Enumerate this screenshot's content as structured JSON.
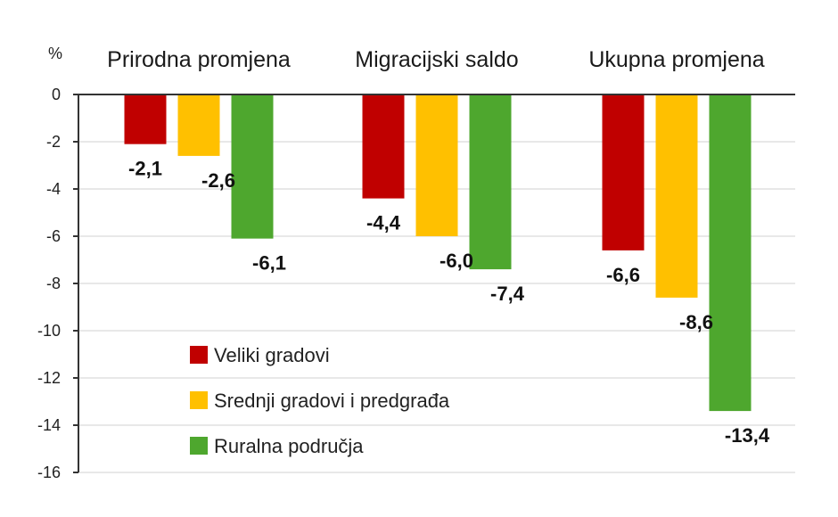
{
  "chart_data": {
    "type": "bar",
    "ylabel": "%",
    "ylim": [
      -16,
      0
    ],
    "yticks": [
      0,
      -2,
      -4,
      -6,
      -8,
      -10,
      -12,
      -14,
      -16
    ],
    "ytick_labels": [
      "0",
      "-2",
      "-4",
      "-6",
      "-8",
      "-10",
      "-12",
      "-14",
      "-16"
    ],
    "grid": true,
    "categories": [
      "Prirodna promjena",
      "Migracijski saldo",
      "Ukupna promjena"
    ],
    "series": [
      {
        "name": "Veliki gradovi",
        "color": "#C00000",
        "values": [
          -2.1,
          -4.4,
          -6.6
        ],
        "labels": [
          "-2,1",
          "-4,4",
          "-6,6"
        ]
      },
      {
        "name": "Srednji gradovi i predgrađa",
        "color": "#FFC000",
        "values": [
          -2.6,
          -6.0,
          -8.6
        ],
        "labels": [
          "-2,6",
          "-6,0",
          "-8,6"
        ]
      },
      {
        "name": "Ruralna područja",
        "color": "#4EA72E",
        "values": [
          -6.1,
          -7.4,
          -13.4
        ],
        "labels": [
          "-6,1",
          "-7,4",
          "-13,4"
        ]
      }
    ],
    "legend_position": "lower-left"
  }
}
